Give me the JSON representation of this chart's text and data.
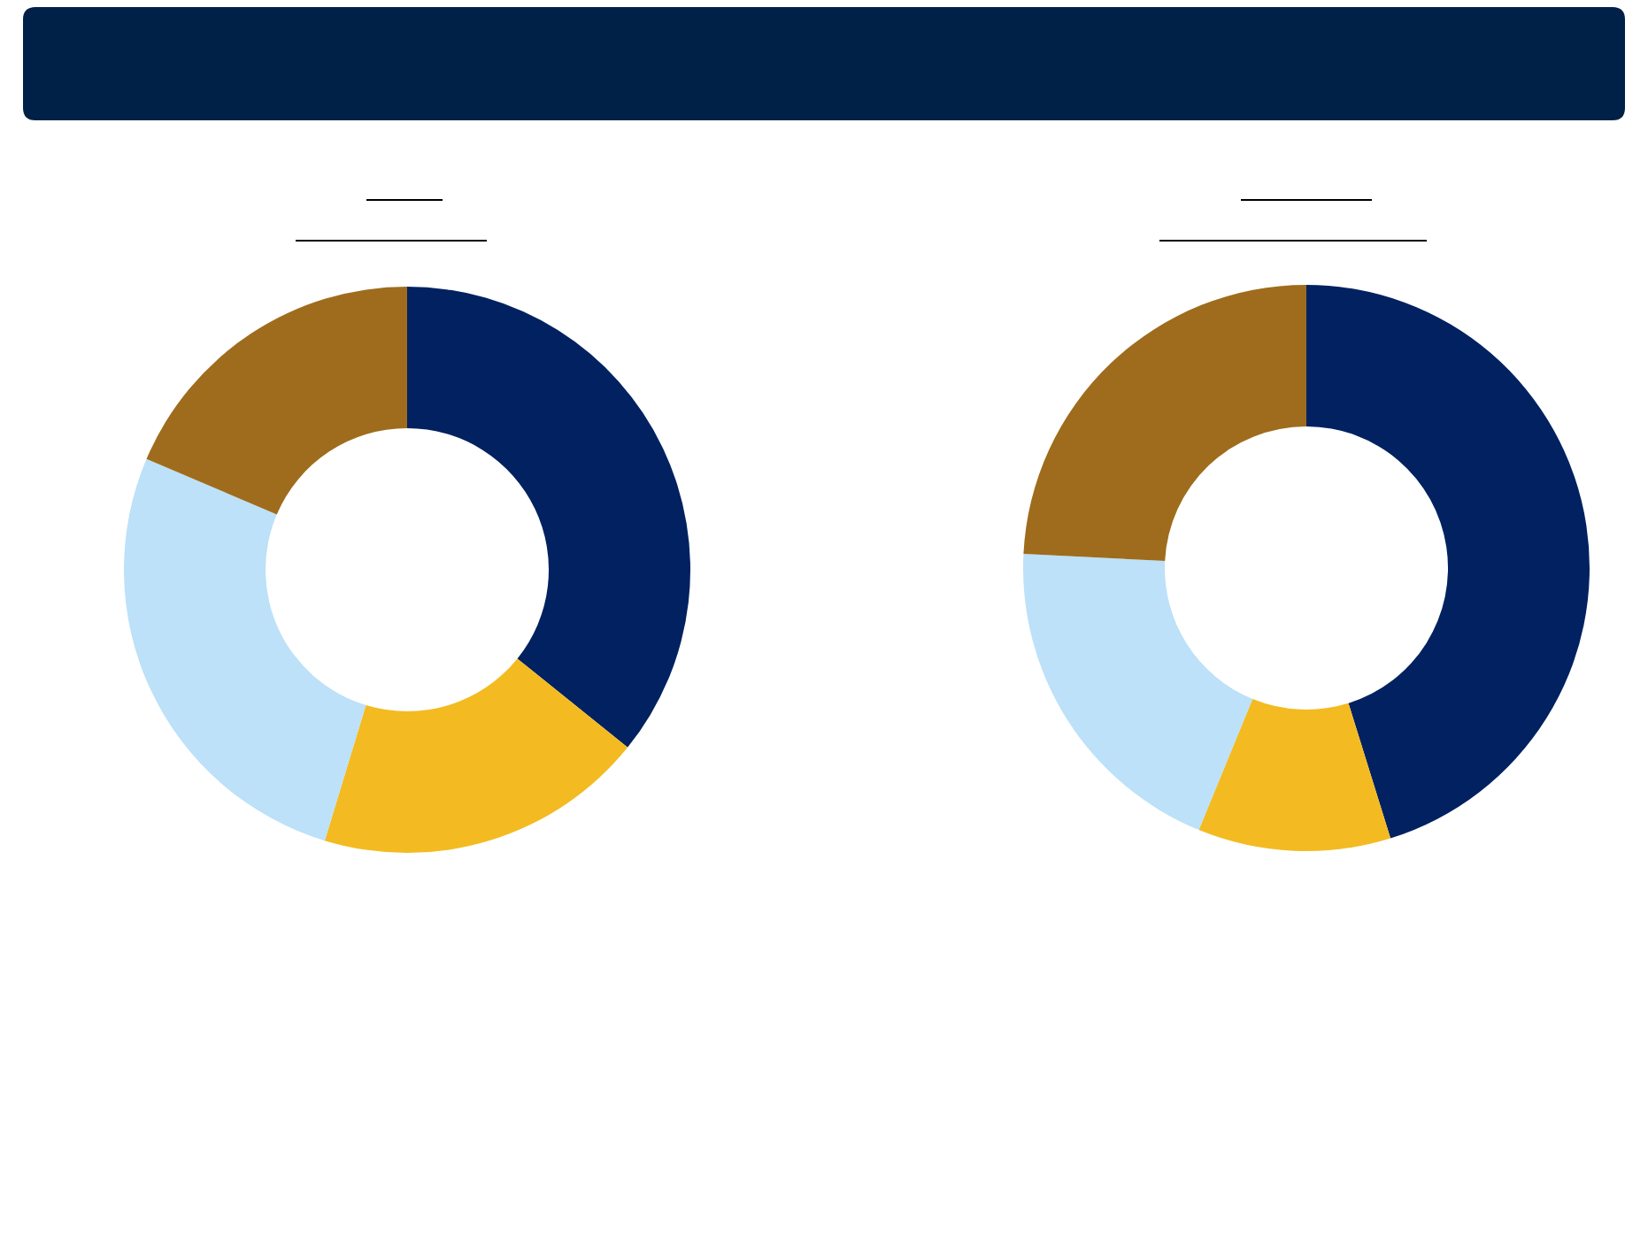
{
  "chart_data": [
    {
      "type": "donut",
      "categories": [
        null,
        null,
        null,
        null
      ],
      "values": [
        35.8,
        18.9,
        26.7,
        18.6
      ],
      "colors": [
        "#012160",
        "#f3bb21",
        "#bce1f8",
        "#9e6c1c"
      ]
    },
    {
      "type": "donut",
      "categories": [
        null,
        null,
        null,
        null
      ],
      "values": [
        45.2,
        11.0,
        19.6,
        24.2
      ],
      "colors": [
        "#012160",
        "#f3bb21",
        "#bce1f8",
        "#9e6c1c"
      ]
    }
  ]
}
